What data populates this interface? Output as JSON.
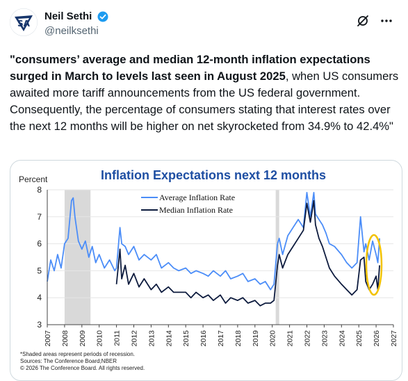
{
  "author": {
    "name": "Neil Sethi",
    "handle": "@neilksethi",
    "avatar_icon": "sa-logo-icon",
    "verified_color": "#1d9bf0"
  },
  "actions": {
    "grok_icon": "grok-icon",
    "more_icon": "more-dots-icon"
  },
  "post": {
    "bold_part": "\"consumers’ average and median 12-month inflation expectations surged in March to levels last seen in August 2025",
    "rest_part": ", when US consumers awaited more tariff announcements from the US federal government. Consequently, the percentage of consumers stating that interest rates over the next 12 months will be higher on net skyrocketed from 34.9% to 42.4%\""
  },
  "chart_data": {
    "type": "line",
    "title": "Inflation Expectations next 12 months",
    "ylabel": "Percent",
    "ylim": [
      3,
      8
    ],
    "yticks": [
      "3",
      "4",
      "5",
      "6",
      "7",
      "8"
    ],
    "xlim": [
      2007.0,
      2027.0
    ],
    "xticks": [
      "2007",
      "2008",
      "2009",
      "2010",
      "2011",
      "2012",
      "2013",
      "2014",
      "2015",
      "2016",
      "2017",
      "2018",
      "2019",
      "2020",
      "2021",
      "2022",
      "2023",
      "2024",
      "2025",
      "2026",
      "2027"
    ],
    "recessions": [
      [
        2008.0,
        2009.5
      ],
      [
        2020.2,
        2020.4
      ]
    ],
    "footnotes": [
      "*Shaded areas represent periods of recession.",
      "Sources: The Conference Board;NBER",
      "© 2026 The Conference Board. All rights reserved."
    ],
    "colors": {
      "average": "#4b8df8",
      "median": "#0d1b3e",
      "title": "#1f4fa3",
      "highlight": "#f2c200",
      "recession": "#d9d9d9"
    },
    "series": [
      {
        "name": "Average Inflation Rate",
        "x": [
          2007.0,
          2007.2,
          2007.4,
          2007.6,
          2007.8,
          2008.0,
          2008.2,
          2008.4,
          2008.5,
          2008.6,
          2008.8,
          2009.0,
          2009.2,
          2009.4,
          2009.6,
          2009.8,
          2010.0,
          2010.3,
          2010.6,
          2010.9,
          2011.0,
          2011.2,
          2011.3,
          2011.5,
          2011.7,
          2012.0,
          2012.3,
          2012.6,
          2013.0,
          2013.3,
          2013.6,
          2014.0,
          2014.3,
          2014.6,
          2015.0,
          2015.3,
          2015.6,
          2016.0,
          2016.3,
          2016.6,
          2017.0,
          2017.3,
          2017.6,
          2018.0,
          2018.3,
          2018.6,
          2019.0,
          2019.3,
          2019.6,
          2019.9,
          2020.1,
          2020.3,
          2020.4,
          2020.6,
          2020.9,
          2021.2,
          2021.5,
          2021.8,
          2022.0,
          2022.2,
          2022.4,
          2022.5,
          2022.7,
          2022.9,
          2023.1,
          2023.3,
          2023.6,
          2024.0,
          2024.3,
          2024.6,
          2024.9,
          2025.1,
          2025.3,
          2025.4,
          2025.6,
          2025.8,
          2026.0,
          2026.1,
          2026.2
        ],
        "y": [
          4.6,
          5.4,
          5.0,
          5.6,
          5.1,
          6.0,
          6.2,
          7.6,
          7.7,
          7.0,
          6.1,
          5.8,
          6.1,
          5.5,
          5.9,
          5.3,
          5.6,
          5.1,
          5.4,
          5.0,
          5.1,
          6.6,
          6.0,
          5.9,
          5.6,
          5.9,
          5.4,
          5.6,
          5.4,
          5.6,
          5.1,
          5.3,
          5.1,
          5.0,
          5.1,
          4.9,
          5.0,
          4.9,
          4.8,
          5.0,
          4.8,
          5.0,
          4.7,
          4.8,
          4.9,
          4.6,
          4.7,
          4.5,
          4.6,
          4.3,
          4.5,
          6.0,
          6.2,
          5.6,
          6.3,
          6.6,
          6.9,
          6.6,
          7.9,
          7.0,
          7.9,
          7.1,
          6.9,
          6.7,
          6.4,
          6.0,
          5.9,
          5.6,
          5.3,
          5.1,
          5.3,
          7.0,
          5.7,
          6.0,
          5.4,
          6.1,
          5.6,
          5.3,
          6.2
        ]
      },
      {
        "name": "Median Inflation Rate",
        "x": [
          2011.0,
          2011.2,
          2011.3,
          2011.5,
          2011.7,
          2012.0,
          2012.3,
          2012.6,
          2013.0,
          2013.3,
          2013.6,
          2014.0,
          2014.3,
          2014.6,
          2015.0,
          2015.3,
          2015.6,
          2016.0,
          2016.3,
          2016.6,
          2017.0,
          2017.3,
          2017.6,
          2018.0,
          2018.3,
          2018.6,
          2019.0,
          2019.3,
          2019.6,
          2019.9,
          2020.1,
          2020.3,
          2020.4,
          2020.6,
          2020.9,
          2021.2,
          2021.5,
          2021.8,
          2022.0,
          2022.2,
          2022.4,
          2022.5,
          2022.7,
          2022.9,
          2023.1,
          2023.3,
          2023.6,
          2024.0,
          2024.3,
          2024.6,
          2024.9,
          2025.1,
          2025.3,
          2025.4,
          2025.6,
          2025.8,
          2026.0,
          2026.1,
          2026.2
        ],
        "y": [
          4.5,
          5.8,
          4.7,
          5.2,
          4.5,
          4.9,
          4.4,
          4.7,
          4.3,
          4.5,
          4.2,
          4.4,
          4.2,
          4.2,
          4.2,
          4.0,
          4.2,
          4.0,
          4.1,
          3.9,
          4.1,
          3.8,
          4.0,
          3.9,
          4.0,
          3.8,
          3.9,
          3.7,
          3.8,
          3.8,
          3.9,
          5.2,
          5.6,
          5.1,
          5.6,
          5.9,
          6.2,
          6.5,
          7.5,
          6.8,
          7.6,
          6.7,
          6.2,
          5.9,
          5.5,
          5.1,
          4.8,
          4.5,
          4.3,
          4.1,
          4.3,
          5.4,
          5.5,
          4.6,
          4.3,
          4.5,
          4.8,
          4.3,
          5.2
        ]
      }
    ]
  }
}
